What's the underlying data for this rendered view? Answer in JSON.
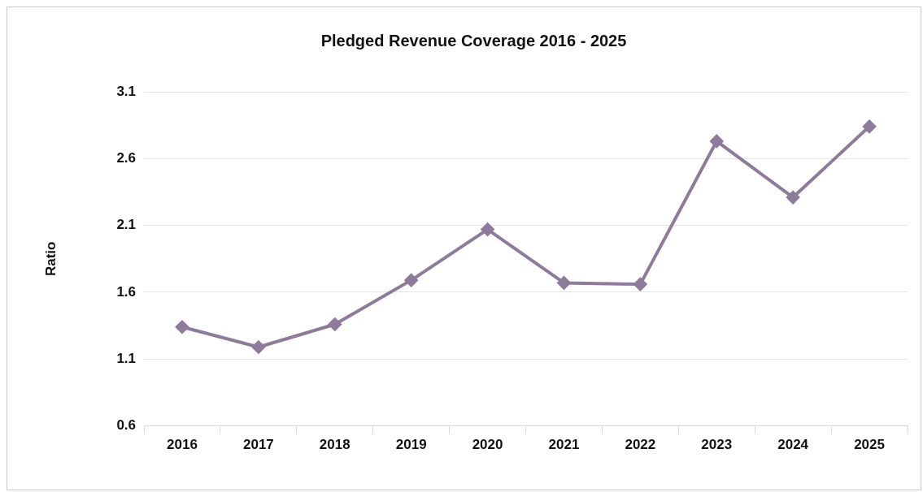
{
  "chart_data": {
    "type": "line",
    "title": "Pledged Revenue Coverage 2016 - 2025",
    "ylabel": "Ratio",
    "categories": [
      "2016",
      "2017",
      "2018",
      "2019",
      "2020",
      "2021",
      "2022",
      "2023",
      "2024",
      "2025"
    ],
    "series": [
      {
        "color": "#8e7a9b",
        "values": [
          1.34,
          1.19,
          1.36,
          1.69,
          2.07,
          1.67,
          1.66,
          2.73,
          2.31,
          2.84
        ]
      }
    ],
    "ylim": [
      0.6,
      3.1
    ],
    "yticks": [
      0.6,
      1.1,
      1.6,
      2.1,
      2.6,
      3.1
    ],
    "grid": "y",
    "legend": false,
    "marker": "diamond",
    "line_style": "solid"
  }
}
